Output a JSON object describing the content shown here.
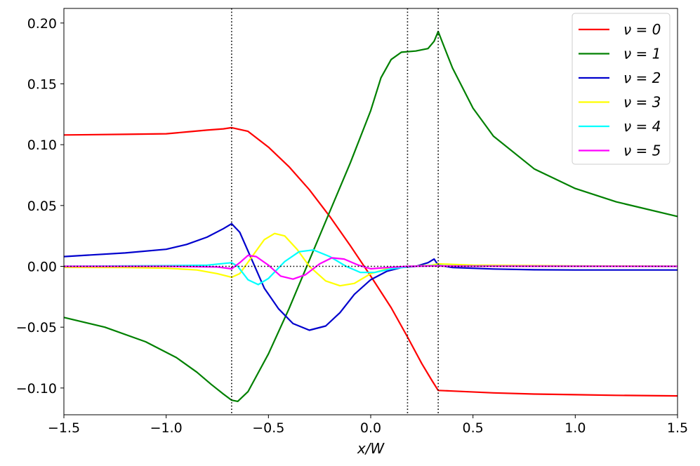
{
  "chart_data": {
    "type": "line",
    "xlabel": "x/W",
    "ylabel": "",
    "xlim": [
      -1.5,
      1.5
    ],
    "ylim": [
      -0.122,
      0.212
    ],
    "grid": false,
    "legend_position": "top-right",
    "x_ticks": [
      -1.5,
      -1.0,
      -0.5,
      0.0,
      0.5,
      1.0,
      1.5
    ],
    "x_tick_labels": [
      "−1.5",
      "−1.0",
      "−0.5",
      "0.0",
      "0.5",
      "1.0",
      "1.5"
    ],
    "y_ticks": [
      -0.1,
      -0.05,
      0.0,
      0.05,
      0.1,
      0.15,
      0.2
    ],
    "y_tick_labels": [
      "−0.10",
      "−0.05",
      "0.00",
      "0.05",
      "0.10",
      "0.15",
      "0.20"
    ],
    "vertical_reference_lines": [
      -0.68,
      0.18,
      0.33
    ],
    "horizontal_reference_line": 0.0,
    "series": [
      {
        "name": "ν = 0",
        "color": "#ff0000",
        "points": [
          [
            -1.5,
            0.108
          ],
          [
            -1.2,
            0.1085
          ],
          [
            -1.0,
            0.109
          ],
          [
            -0.9,
            0.1105
          ],
          [
            -0.8,
            0.112
          ],
          [
            -0.72,
            0.113
          ],
          [
            -0.68,
            0.114
          ],
          [
            -0.6,
            0.111
          ],
          [
            -0.5,
            0.098
          ],
          [
            -0.4,
            0.082
          ],
          [
            -0.3,
            0.063
          ],
          [
            -0.2,
            0.041
          ],
          [
            -0.1,
            0.017
          ],
          [
            0.0,
            -0.008
          ],
          [
            0.1,
            -0.034
          ],
          [
            0.18,
            -0.058
          ],
          [
            0.25,
            -0.08
          ],
          [
            0.3,
            -0.094
          ],
          [
            0.33,
            -0.102
          ],
          [
            0.4,
            -0.1025
          ],
          [
            0.6,
            -0.104
          ],
          [
            0.8,
            -0.105
          ],
          [
            1.0,
            -0.1055
          ],
          [
            1.2,
            -0.106
          ],
          [
            1.5,
            -0.1065
          ]
        ]
      },
      {
        "name": "ν = 1",
        "color": "#008000",
        "points": [
          [
            -1.5,
            -0.042
          ],
          [
            -1.3,
            -0.05
          ],
          [
            -1.1,
            -0.062
          ],
          [
            -0.95,
            -0.075
          ],
          [
            -0.85,
            -0.087
          ],
          [
            -0.78,
            -0.097
          ],
          [
            -0.72,
            -0.105
          ],
          [
            -0.68,
            -0.11
          ],
          [
            -0.65,
            -0.111
          ],
          [
            -0.6,
            -0.103
          ],
          [
            -0.5,
            -0.072
          ],
          [
            -0.4,
            -0.035
          ],
          [
            -0.3,
            0.005
          ],
          [
            -0.2,
            0.045
          ],
          [
            -0.1,
            0.085
          ],
          [
            0.0,
            0.128
          ],
          [
            0.05,
            0.155
          ],
          [
            0.1,
            0.17
          ],
          [
            0.15,
            0.176
          ],
          [
            0.22,
            0.177
          ],
          [
            0.28,
            0.179
          ],
          [
            0.31,
            0.185
          ],
          [
            0.33,
            0.193
          ],
          [
            0.36,
            0.18
          ],
          [
            0.4,
            0.163
          ],
          [
            0.5,
            0.13
          ],
          [
            0.6,
            0.107
          ],
          [
            0.8,
            0.08
          ],
          [
            1.0,
            0.064
          ],
          [
            1.2,
            0.053
          ],
          [
            1.5,
            0.041
          ]
        ]
      },
      {
        "name": "ν = 2",
        "color": "#0000cd",
        "points": [
          [
            -1.5,
            0.008
          ],
          [
            -1.2,
            0.011
          ],
          [
            -1.0,
            0.014
          ],
          [
            -0.9,
            0.018
          ],
          [
            -0.8,
            0.024
          ],
          [
            -0.72,
            0.031
          ],
          [
            -0.68,
            0.035
          ],
          [
            -0.64,
            0.028
          ],
          [
            -0.58,
            0.005
          ],
          [
            -0.52,
            -0.018
          ],
          [
            -0.45,
            -0.035
          ],
          [
            -0.38,
            -0.047
          ],
          [
            -0.3,
            -0.0525
          ],
          [
            -0.22,
            -0.049
          ],
          [
            -0.15,
            -0.038
          ],
          [
            -0.08,
            -0.023
          ],
          [
            0.0,
            -0.011
          ],
          [
            0.08,
            -0.004
          ],
          [
            0.15,
            -0.001
          ],
          [
            0.22,
            0.0
          ],
          [
            0.28,
            0.003
          ],
          [
            0.31,
            0.006
          ],
          [
            0.33,
            0.001
          ],
          [
            0.4,
            -0.001
          ],
          [
            0.6,
            -0.0022
          ],
          [
            0.8,
            -0.0028
          ],
          [
            1.0,
            -0.003
          ],
          [
            1.5,
            -0.003
          ]
        ]
      },
      {
        "name": "ν = 3",
        "color": "#ffff00",
        "points": [
          [
            -1.5,
            -0.0008
          ],
          [
            -1.2,
            -0.001
          ],
          [
            -1.0,
            -0.0015
          ],
          [
            -0.85,
            -0.003
          ],
          [
            -0.75,
            -0.006
          ],
          [
            -0.68,
            -0.009
          ],
          [
            -0.64,
            -0.006
          ],
          [
            -0.58,
            0.008
          ],
          [
            -0.52,
            0.022
          ],
          [
            -0.47,
            0.027
          ],
          [
            -0.42,
            0.025
          ],
          [
            -0.36,
            0.014
          ],
          [
            -0.3,
            0.0
          ],
          [
            -0.22,
            -0.012
          ],
          [
            -0.15,
            -0.016
          ],
          [
            -0.08,
            -0.014
          ],
          [
            0.0,
            -0.006
          ],
          [
            0.1,
            -0.001
          ],
          [
            0.2,
            0.0
          ],
          [
            0.3,
            0.001
          ],
          [
            0.33,
            0.002
          ],
          [
            0.5,
            0.001
          ],
          [
            1.0,
            0.0003
          ],
          [
            1.5,
            0.0001
          ]
        ]
      },
      {
        "name": "ν = 4",
        "color": "#00ffff",
        "points": [
          [
            -1.5,
            0.0
          ],
          [
            -1.0,
            0.0005
          ],
          [
            -0.8,
            0.001
          ],
          [
            -0.68,
            0.003
          ],
          [
            -0.65,
            0.0
          ],
          [
            -0.6,
            -0.011
          ],
          [
            -0.55,
            -0.015
          ],
          [
            -0.5,
            -0.01
          ],
          [
            -0.42,
            0.004
          ],
          [
            -0.35,
            0.012
          ],
          [
            -0.28,
            0.0135
          ],
          [
            -0.2,
            0.008
          ],
          [
            -0.12,
            0.0
          ],
          [
            -0.05,
            -0.005
          ],
          [
            0.02,
            -0.005
          ],
          [
            0.1,
            -0.002
          ],
          [
            0.2,
            0.0
          ],
          [
            0.3,
            0.0005
          ],
          [
            0.5,
            0.0002
          ],
          [
            1.5,
            0.0
          ]
        ]
      },
      {
        "name": "ν = 5",
        "color": "#ff00ff",
        "points": [
          [
            -1.5,
            0.0
          ],
          [
            -1.0,
            0.0
          ],
          [
            -0.75,
            -0.0005
          ],
          [
            -0.68,
            -0.002
          ],
          [
            -0.64,
            0.003
          ],
          [
            -0.6,
            0.009
          ],
          [
            -0.56,
            0.008
          ],
          [
            -0.5,
            0.001
          ],
          [
            -0.44,
            -0.008
          ],
          [
            -0.38,
            -0.0105
          ],
          [
            -0.32,
            -0.007
          ],
          [
            -0.25,
            0.002
          ],
          [
            -0.19,
            0.007
          ],
          [
            -0.13,
            0.006
          ],
          [
            -0.06,
            0.001
          ],
          [
            0.0,
            -0.002
          ],
          [
            0.08,
            -0.001
          ],
          [
            0.18,
            0.0
          ],
          [
            0.3,
            0.0003
          ],
          [
            0.5,
            0.0001
          ],
          [
            1.5,
            0.0
          ]
        ]
      }
    ]
  }
}
